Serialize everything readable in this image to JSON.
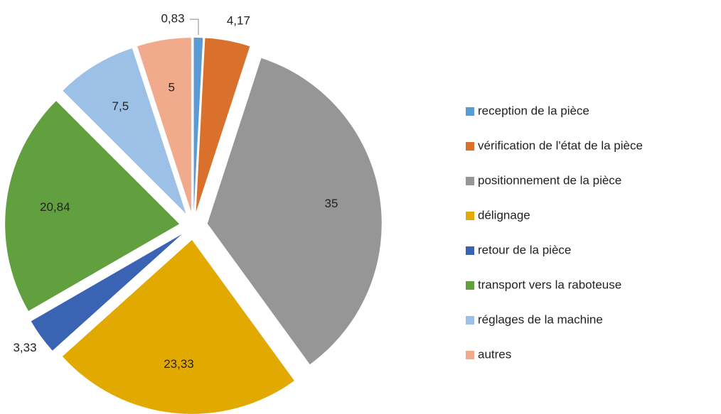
{
  "chart_data": {
    "type": "pie",
    "categories": [
      "reception de la pièce",
      "vérification de l'état de la pièce",
      "positionnement de la pièce",
      "délignage",
      "retour de la pièce",
      "transport vers la raboteuse",
      "réglages de la machine",
      "autres"
    ],
    "values": [
      0.83,
      4.17,
      35,
      23.33,
      3.33,
      20.84,
      7.5,
      5
    ],
    "value_labels": [
      "0,83",
      "4,17",
      "35",
      "23,33",
      "3,33",
      "20,84",
      "7,5",
      "5"
    ],
    "colors": [
      "#5b9bd5",
      "#d9712d",
      "#969696",
      "#e2aa00",
      "#3b63b3",
      "#62a03f",
      "#9dc1e6",
      "#f2aa8c"
    ],
    "legend": "right"
  }
}
